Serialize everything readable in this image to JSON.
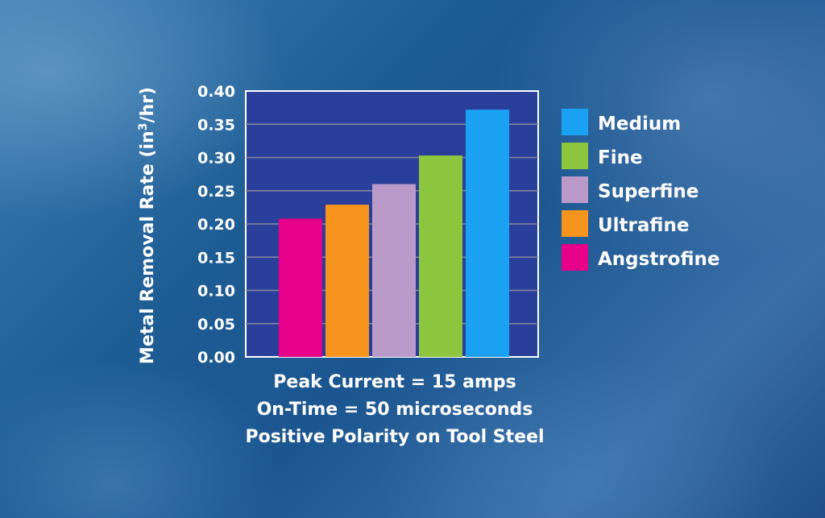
{
  "chart_data": {
    "type": "bar",
    "ylabel": "Metal Removal Rate (in3/hr)",
    "ylabel_parts": [
      "Metal Removal Rate (in",
      "3",
      "/hr)"
    ],
    "ylim": [
      0,
      0.4
    ],
    "yticks": [
      "0.00",
      "0.05",
      "0.10",
      "0.15",
      "0.20",
      "0.25",
      "0.30",
      "0.35",
      "0.40"
    ],
    "grid": true,
    "legend_position": "right",
    "plot_background": "#2a3f9a",
    "series": [
      {
        "name": "Angstrofine",
        "value": 0.208,
        "color": "#e6008a"
      },
      {
        "name": "Ultrafine",
        "value": 0.229,
        "color": "#f7941d"
      },
      {
        "name": "Superfine",
        "value": 0.26,
        "color": "#b99ac8"
      },
      {
        "name": "Fine",
        "value": 0.303,
        "color": "#8cc63f"
      },
      {
        "name": "Medium",
        "value": 0.372,
        "color": "#1ba1f2"
      }
    ],
    "legend_order": [
      "Medium",
      "Fine",
      "Superfine",
      "Ultrafine",
      "Angstrofine"
    ],
    "annotations": [
      "Peak Current = 15 amps",
      "On-Time = 50 microseconds",
      "Positive Polarity on Tool Steel"
    ]
  }
}
